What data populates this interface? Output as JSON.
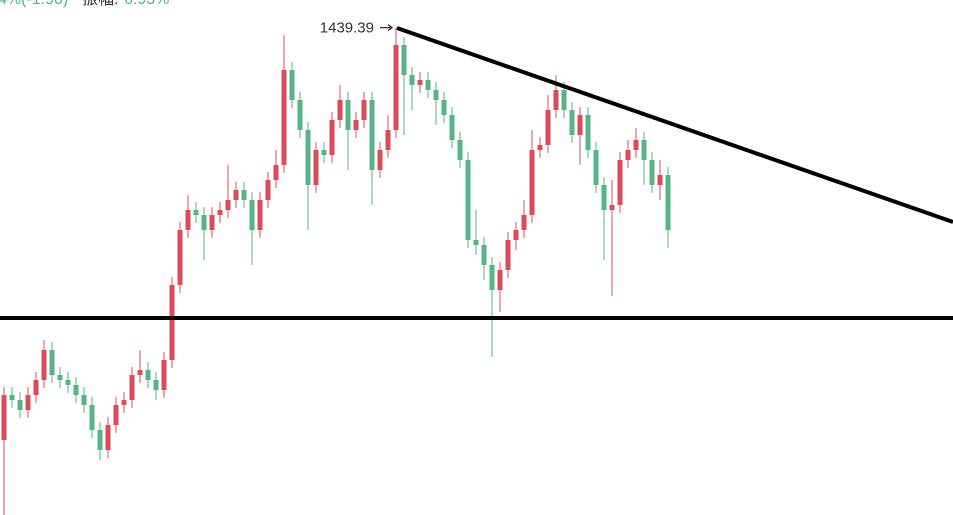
{
  "chart_data": {
    "type": "candlestick",
    "header": [
      "4%(-1.90)",
      "振幅:",
      "6.93%"
    ],
    "up_color": "#dc4b5c",
    "down_color": "#52b487",
    "ylim": [
      952,
      1467
    ],
    "high_label_index": 49,
    "ohlc": [
      [
        1027,
        1080,
        952,
        1072
      ],
      [
        1072,
        1080,
        1059,
        1067
      ],
      [
        1067,
        1075,
        1049,
        1057
      ],
      [
        1057,
        1080,
        1049,
        1072
      ],
      [
        1072,
        1095,
        1064,
        1087
      ],
      [
        1087,
        1127,
        1079,
        1117
      ],
      [
        1117,
        1125,
        1084,
        1092
      ],
      [
        1092,
        1100,
        1079,
        1087
      ],
      [
        1087,
        1095,
        1074,
        1082
      ],
      [
        1082,
        1090,
        1064,
        1072
      ],
      [
        1072,
        1080,
        1054,
        1062
      ],
      [
        1062,
        1070,
        1029,
        1037
      ],
      [
        1037,
        1045,
        1007,
        1017
      ],
      [
        1017,
        1050,
        1009,
        1042
      ],
      [
        1042,
        1070,
        1034,
        1062
      ],
      [
        1062,
        1075,
        1054,
        1067
      ],
      [
        1067,
        1100,
        1059,
        1092
      ],
      [
        1092,
        1117,
        1084,
        1097
      ],
      [
        1097,
        1105,
        1079,
        1087
      ],
      [
        1087,
        1095,
        1067,
        1077
      ],
      [
        1077,
        1115,
        1069,
        1107
      ],
      [
        1107,
        1190,
        1099,
        1182
      ],
      [
        1182,
        1245,
        1174,
        1237
      ],
      [
        1237,
        1272,
        1229,
        1257
      ],
      [
        1257,
        1265,
        1244,
        1252
      ],
      [
        1252,
        1260,
        1207,
        1237
      ],
      [
        1237,
        1260,
        1229,
        1252
      ],
      [
        1252,
        1265,
        1244,
        1257
      ],
      [
        1257,
        1302,
        1249,
        1267
      ],
      [
        1267,
        1285,
        1259,
        1277
      ],
      [
        1277,
        1285,
        1259,
        1267
      ],
      [
        1267,
        1275,
        1202,
        1237
      ],
      [
        1237,
        1275,
        1229,
        1267
      ],
      [
        1267,
        1295,
        1259,
        1287
      ],
      [
        1287,
        1317,
        1279,
        1302
      ],
      [
        1302,
        1432,
        1294,
        1397
      ],
      [
        1397,
        1405,
        1359,
        1367
      ],
      [
        1367,
        1375,
        1329,
        1337
      ],
      [
        1337,
        1345,
        1237,
        1282
      ],
      [
        1282,
        1325,
        1274,
        1317
      ],
      [
        1317,
        1325,
        1304,
        1312
      ],
      [
        1312,
        1355,
        1304,
        1347
      ],
      [
        1347,
        1382,
        1339,
        1367
      ],
      [
        1367,
        1375,
        1297,
        1337
      ],
      [
        1337,
        1355,
        1329,
        1347
      ],
      [
        1347,
        1375,
        1339,
        1367
      ],
      [
        1367,
        1375,
        1262,
        1297
      ],
      [
        1297,
        1325,
        1289,
        1317
      ],
      [
        1317,
        1352,
        1309,
        1337
      ],
      [
        1337,
        1439.39,
        1329,
        1422
      ],
      [
        1422,
        1430,
        1332,
        1392
      ],
      [
        1392,
        1400,
        1357,
        1382
      ],
      [
        1382,
        1395,
        1374,
        1387
      ],
      [
        1387,
        1395,
        1369,
        1377
      ],
      [
        1377,
        1385,
        1342,
        1367
      ],
      [
        1367,
        1375,
        1344,
        1352
      ],
      [
        1352,
        1360,
        1319,
        1327
      ],
      [
        1327,
        1335,
        1299,
        1307
      ],
      [
        1307,
        1315,
        1219,
        1227
      ],
      [
        1227,
        1257,
        1212,
        1222
      ],
      [
        1222,
        1230,
        1187,
        1202
      ],
      [
        1202,
        1210,
        1110,
        1177
      ],
      [
        1177,
        1205,
        1155,
        1197
      ],
      [
        1197,
        1235,
        1189,
        1227
      ],
      [
        1227,
        1245,
        1217,
        1237
      ],
      [
        1237,
        1267,
        1229,
        1252
      ],
      [
        1252,
        1337,
        1244,
        1317
      ],
      [
        1317,
        1330,
        1309,
        1322
      ],
      [
        1322,
        1372,
        1314,
        1357
      ],
      [
        1357,
        1392,
        1349,
        1377
      ],
      [
        1377,
        1385,
        1349,
        1357
      ],
      [
        1357,
        1365,
        1324,
        1332
      ],
      [
        1332,
        1360,
        1302,
        1352
      ],
      [
        1352,
        1360,
        1309,
        1317
      ],
      [
        1317,
        1325,
        1274,
        1282
      ],
      [
        1282,
        1290,
        1207,
        1257
      ],
      [
        1257,
        1287,
        1171,
        1262
      ],
      [
        1262,
        1315,
        1254,
        1307
      ],
      [
        1307,
        1327,
        1299,
        1317
      ],
      [
        1317,
        1339,
        1309,
        1327
      ],
      [
        1327,
        1335,
        1282,
        1307
      ],
      [
        1307,
        1315,
        1274,
        1282
      ],
      [
        1282,
        1307,
        1267,
        1292
      ],
      [
        1292,
        1300,
        1219,
        1237
      ]
    ]
  }
}
